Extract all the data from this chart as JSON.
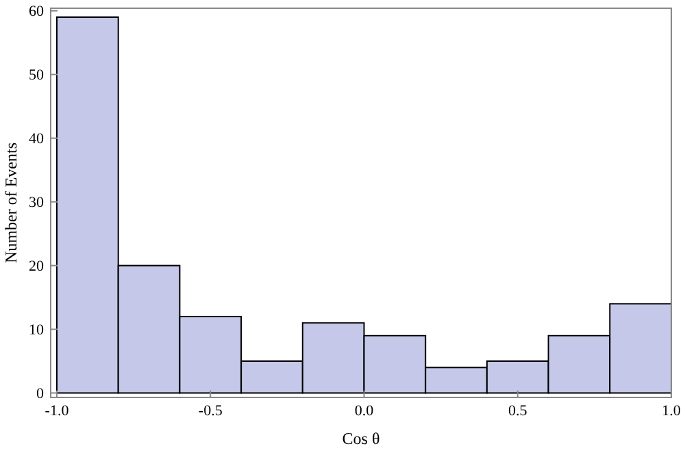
{
  "chart_data": {
    "type": "histogram",
    "xlabel": "Cos θ",
    "ylabel": "Number of Events",
    "bins": [
      -1.0,
      -0.8,
      -0.6,
      -0.4,
      -0.2,
      0.0,
      0.2,
      0.4,
      0.6,
      0.8,
      1.0
    ],
    "values": [
      59,
      20,
      12,
      5,
      11,
      9,
      4,
      5,
      9,
      14
    ],
    "color": "#c5c8e8",
    "xlim": [
      -1.02,
      1.0
    ],
    "ylim": [
      -0.7,
      60.4
    ],
    "xticks": [
      {
        "value": -1,
        "label": "-1.0"
      },
      {
        "value": -0.5,
        "label": "-0.5"
      },
      {
        "value": 0,
        "label": "0.0"
      },
      {
        "value": 0.5,
        "label": "0.5"
      },
      {
        "value": 1,
        "label": "1.0"
      }
    ],
    "yticks": [
      0,
      10,
      20,
      30,
      40,
      50,
      60
    ],
    "grid": false
  }
}
